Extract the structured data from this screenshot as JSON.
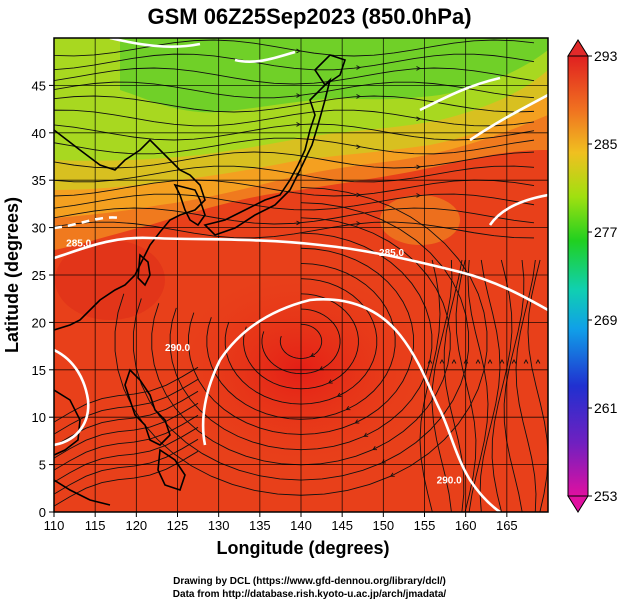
{
  "title": "GSM 06Z25Sep2023 (850.0hPa)",
  "axes": {
    "x_title": "Longitude (degrees)",
    "y_title": "Latitude  (degrees)",
    "x_ticks": [
      "110",
      "115",
      "120",
      "125",
      "130",
      "135",
      "140",
      "145",
      "150",
      "155",
      "160",
      "165"
    ],
    "y_ticks": [
      "0",
      "5",
      "10",
      "15",
      "20",
      "25",
      "30",
      "35",
      "40",
      "45"
    ],
    "x_range": [
      110,
      170
    ],
    "y_range": [
      0,
      50
    ]
  },
  "colorbar": {
    "labels": [
      "293",
      "285",
      "277",
      "269",
      "261",
      "253"
    ],
    "values": [
      293,
      285,
      277,
      269,
      261,
      253
    ],
    "range": [
      253,
      293
    ],
    "colors": [
      "#e0108a",
      "#b020c0",
      "#3030d0",
      "#1070e0",
      "#10b0e0",
      "#10d0a0",
      "#30d020",
      "#a0e010",
      "#f0d020",
      "#f09020",
      "#f05020",
      "#e02020"
    ]
  },
  "contour_labels": [
    {
      "text": "285.0",
      "lon": 113,
      "lat": 28
    },
    {
      "text": "285.0",
      "lon": 151,
      "lat": 27
    },
    {
      "text": "290.0",
      "lon": 125,
      "lat": 17
    },
    {
      "text": "290.0",
      "lon": 158,
      "lat": 3
    }
  ],
  "credits": {
    "line1": "Drawing by DCL (https://www.gfd-dennou.org/library/dcl/)",
    "line2": "Data from http://database.rish.kyoto-u.ac.jp/arch/jmadata/"
  }
}
